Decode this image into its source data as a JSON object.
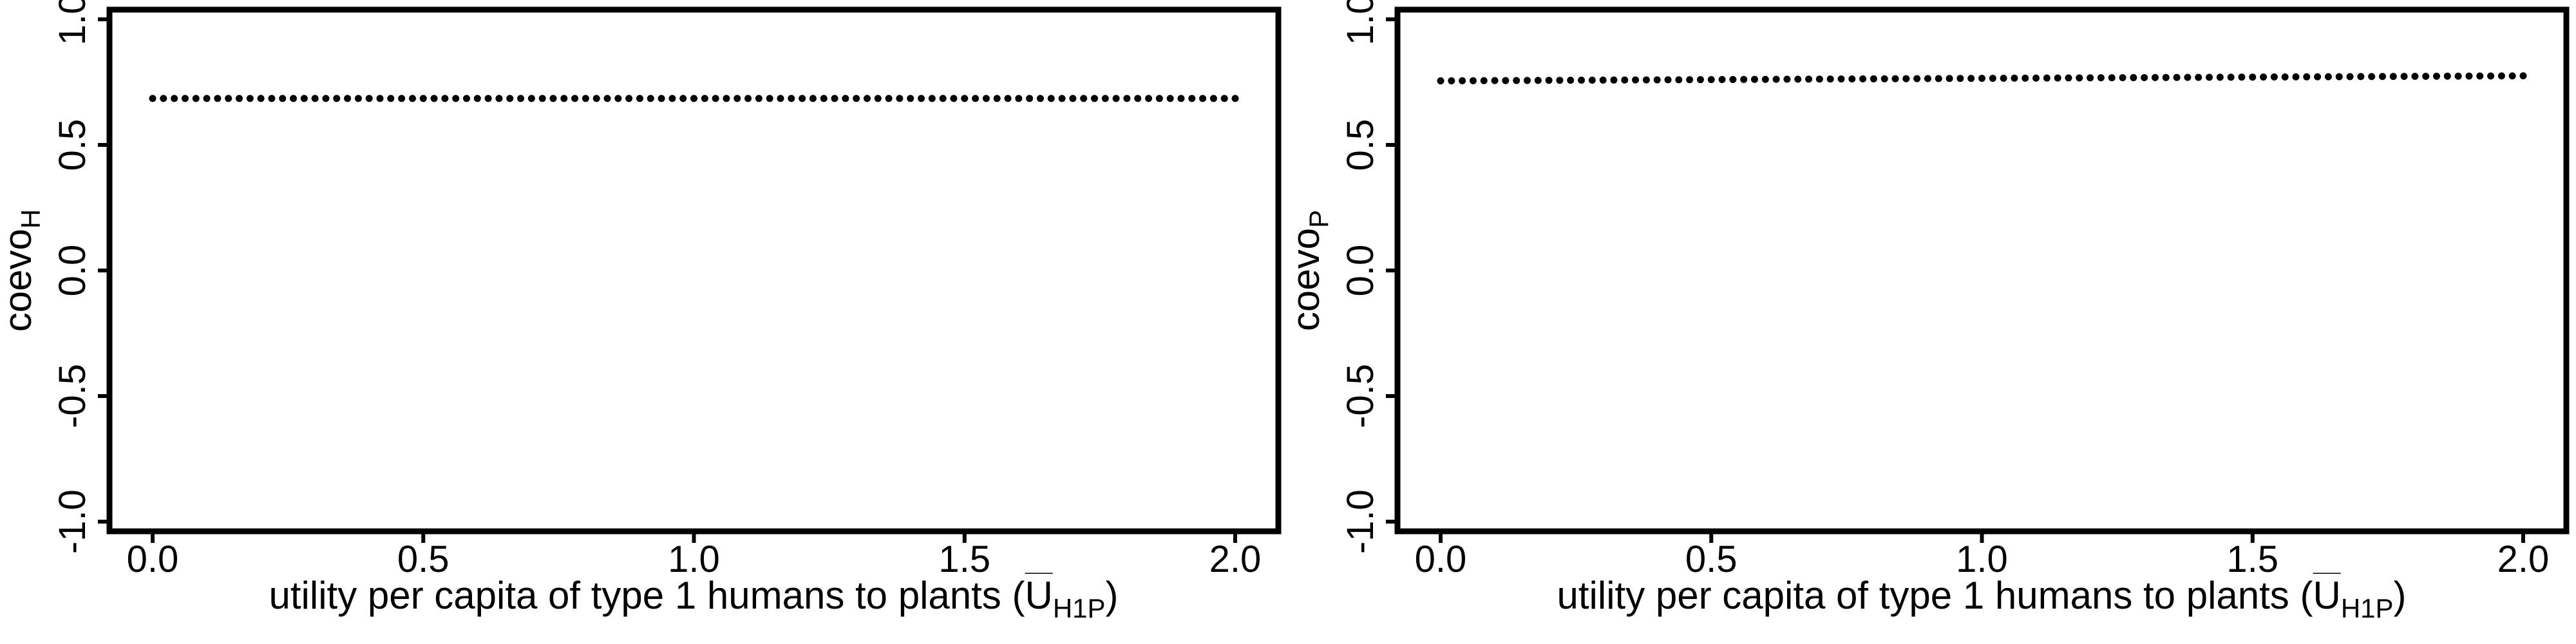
{
  "chart_data": [
    {
      "type": "scatter",
      "xlabel_main": "utility per capita of type 1 humans to plants (",
      "xlabel_symbol": "U",
      "xlabel_sub": "H1P",
      "xlabel_close": ")",
      "ylabel_main": "coevo",
      "ylabel_sub": "H",
      "xlim": [
        0.0,
        2.0
      ],
      "ylim": [
        -1.0,
        1.0
      ],
      "xticks": [
        "0.0",
        "0.5",
        "1.0",
        "1.5",
        "2.0"
      ],
      "yticks": [
        "-1.0",
        "-0.5",
        "0.0",
        "0.5",
        "1.0"
      ],
      "x_start": 0.0,
      "x_end": 2.0,
      "n_points": 101,
      "y_start": 0.685,
      "y_end": 0.685,
      "grid": false,
      "legend": "none"
    },
    {
      "type": "scatter",
      "xlabel_main": "utility per capita of type 1 humans to plants (",
      "xlabel_symbol": "U",
      "xlabel_sub": "H1P",
      "xlabel_close": ")",
      "ylabel_main": "coevo",
      "ylabel_sub": "P",
      "xlim": [
        0.0,
        2.0
      ],
      "ylim": [
        -1.0,
        1.0
      ],
      "xticks": [
        "0.0",
        "0.5",
        "1.0",
        "1.5",
        "2.0"
      ],
      "yticks": [
        "-1.0",
        "-0.5",
        "0.0",
        "0.5",
        "1.0"
      ],
      "x_start": 0.0,
      "x_end": 2.0,
      "n_points": 101,
      "y_start": 0.755,
      "y_end": 0.775,
      "grid": false,
      "legend": "none"
    }
  ]
}
